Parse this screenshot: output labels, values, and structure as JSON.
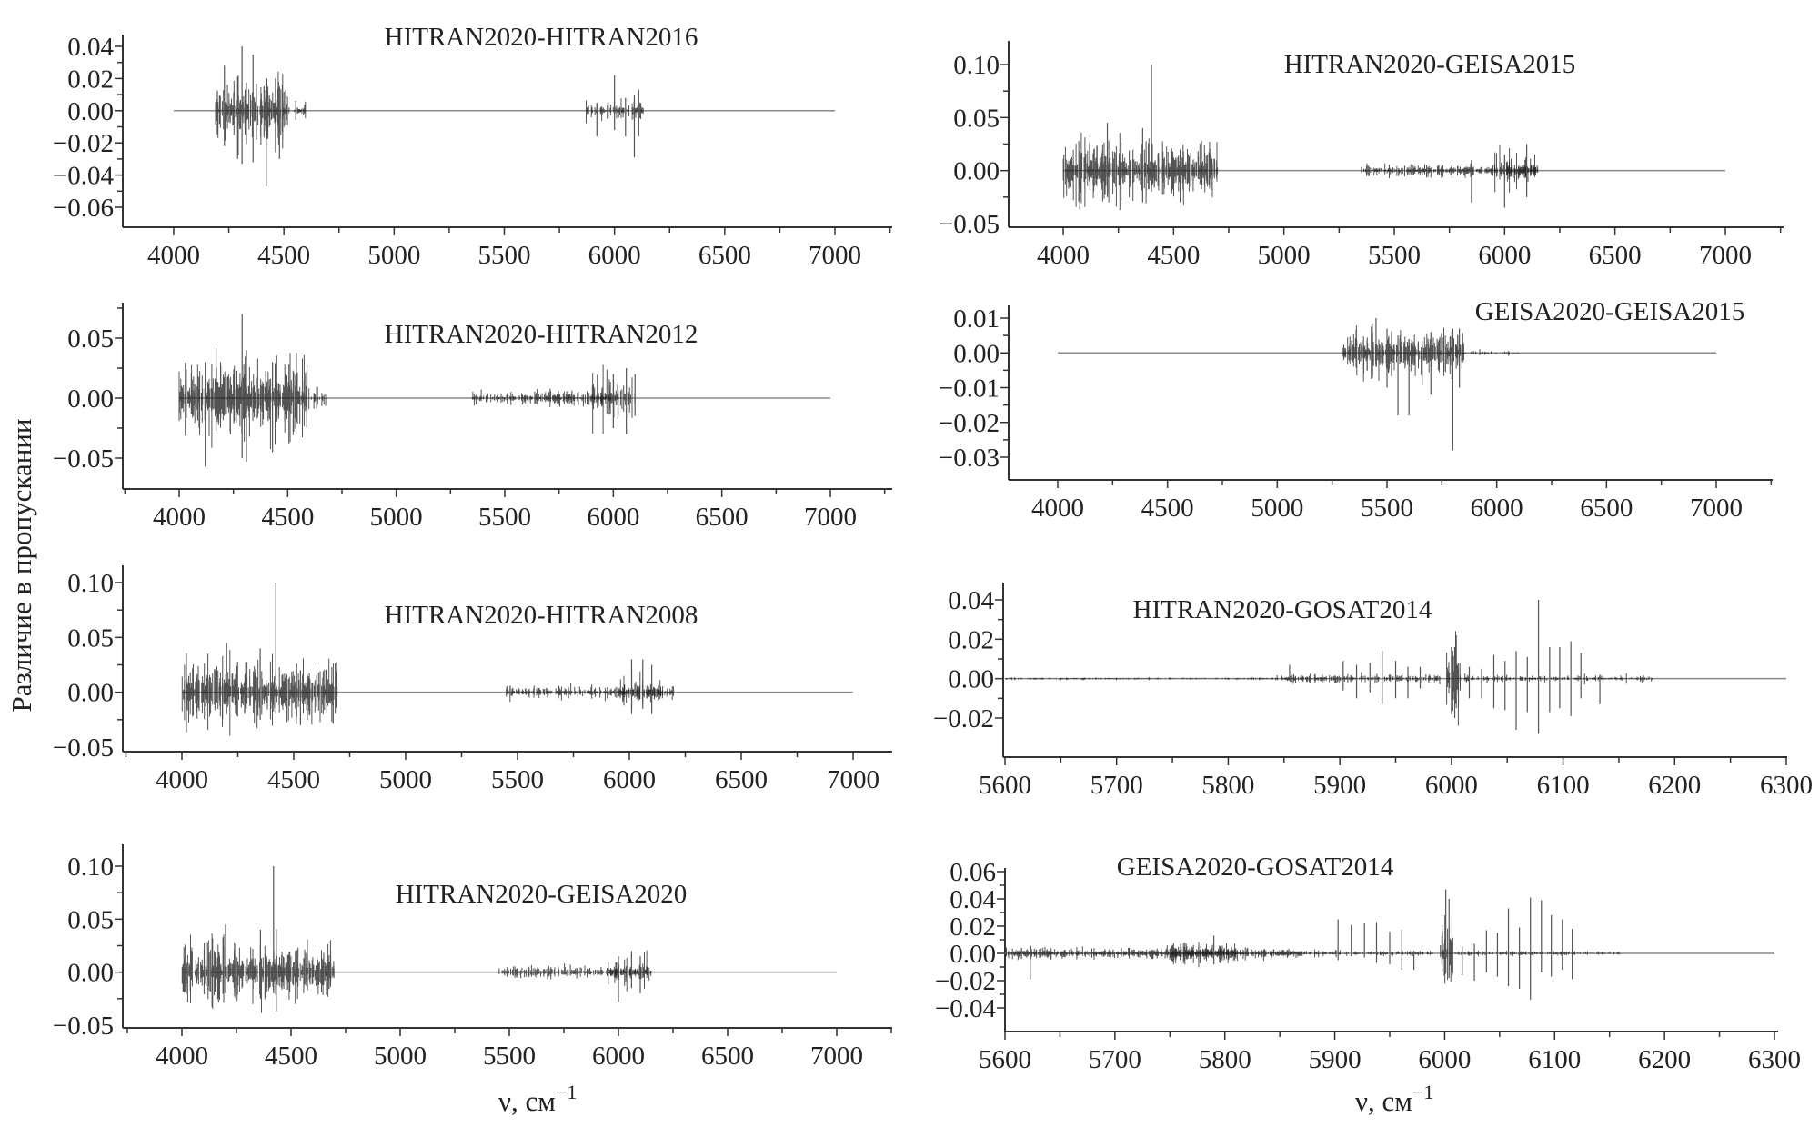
{
  "figure": {
    "ylabel": "Различие в пропускании",
    "xlabel_left": "ν, см",
    "xlabel_right": "ν, см",
    "xlabel_exponent": "−1"
  },
  "chart_data": [
    {
      "type": "line",
      "title": "HITRAN2020-HITRAN2016",
      "xlim": [
        4000,
        7000
      ],
      "xticks": [
        4000,
        4500,
        5000,
        5500,
        6000,
        6500,
        7000
      ],
      "yticks": [
        0.04,
        0.02,
        0.0,
        -0.02,
        -0.04,
        -0.06
      ],
      "ytick_labels": [
        "0.04",
        "0.02",
        "0.00",
        "−0.02",
        "−0.04",
        "−0.06"
      ],
      "baseline": [
        4000,
        7000
      ],
      "bands": [
        [
          4190,
          4520,
          0.012,
          1.0
        ],
        [
          4520,
          4600,
          0.003,
          0.5
        ],
        [
          5870,
          6130,
          0.004,
          0.6
        ]
      ],
      "spikes": [
        [
          4230,
          0.028,
          -0.022
        ],
        [
          4290,
          0.021,
          -0.03
        ],
        [
          4310,
          0.04,
          -0.033
        ],
        [
          4360,
          0.035,
          -0.032
        ],
        [
          4420,
          0.01,
          -0.047
        ],
        [
          4480,
          0.015,
          -0.03
        ],
        [
          5920,
          0.005,
          -0.016
        ],
        [
          6000,
          0.022,
          -0.012
        ],
        [
          6050,
          0.008,
          -0.016
        ],
        [
          6090,
          0.01,
          -0.029
        ],
        [
          6110,
          0.013,
          -0.016
        ]
      ]
    },
    {
      "type": "line",
      "title": "HITRAN2020-HITRAN2012",
      "xlim": [
        4000,
        7000
      ],
      "xticks": [
        4000,
        4500,
        5000,
        5500,
        6000,
        6500,
        7000
      ],
      "yticks": [
        0.05,
        0.0,
        -0.05
      ],
      "ytick_labels": [
        "0.05",
        "0.00",
        "−0.05"
      ],
      "baseline": [
        4000,
        7000
      ],
      "bands": [
        [
          4000,
          4600,
          0.02,
          1.0
        ],
        [
          4600,
          4680,
          0.006,
          0.4
        ],
        [
          5350,
          6000,
          0.004,
          0.7
        ],
        [
          5900,
          6100,
          0.012,
          0.5
        ]
      ],
      "spikes": [
        [
          4120,
          0.03,
          -0.057
        ],
        [
          4170,
          0.042,
          -0.03
        ],
        [
          4290,
          0.07,
          -0.05
        ],
        [
          4310,
          0.04,
          -0.053
        ],
        [
          4430,
          0.03,
          -0.045
        ],
        [
          4540,
          0.038,
          -0.02
        ],
        [
          6000,
          0.02,
          -0.025
        ],
        [
          6060,
          0.025,
          -0.03
        ],
        [
          6100,
          0.02,
          -0.015
        ]
      ]
    },
    {
      "type": "line",
      "title": "HITRAN2020-HITRAN2008",
      "xlim": [
        4000,
        7000
      ],
      "xticks": [
        4000,
        4500,
        5000,
        5500,
        6000,
        6500,
        7000
      ],
      "yticks": [
        0.1,
        0.05,
        0.0,
        -0.05
      ],
      "ytick_labels": [
        "0.10",
        "0.05",
        "0.00",
        "−0.05"
      ],
      "baseline": [
        4000,
        7000
      ],
      "bands": [
        [
          4000,
          4700,
          0.018,
          1.0
        ],
        [
          5450,
          6200,
          0.004,
          0.7
        ],
        [
          5950,
          6150,
          0.01,
          0.5
        ]
      ],
      "spikes": [
        [
          4200,
          0.045,
          -0.02
        ],
        [
          4350,
          0.04,
          -0.025
        ],
        [
          4420,
          0.1,
          -0.02
        ],
        [
          4530,
          0.02,
          -0.03
        ],
        [
          6010,
          0.03,
          -0.02
        ],
        [
          6060,
          0.03,
          -0.015
        ],
        [
          6100,
          0.025,
          -0.02
        ]
      ]
    },
    {
      "type": "line",
      "title": "HITRAN2020-GEISA2020",
      "xlim": [
        4000,
        7000
      ],
      "xticks": [
        4000,
        4500,
        5000,
        5500,
        6000,
        6500,
        7000
      ],
      "yticks": [
        0.1,
        0.05,
        0.0,
        -0.05
      ],
      "ytick_labels": [
        "0.10",
        "0.05",
        "0.00",
        "−0.05"
      ],
      "baseline": [
        4000,
        7000
      ],
      "bands": [
        [
          4000,
          4700,
          0.018,
          1.0
        ],
        [
          5450,
          6150,
          0.004,
          0.7
        ],
        [
          5950,
          6150,
          0.01,
          0.5
        ]
      ],
      "spikes": [
        [
          4200,
          0.045,
          -0.02
        ],
        [
          4360,
          0.04,
          -0.025
        ],
        [
          4420,
          0.1,
          -0.02
        ],
        [
          4520,
          0.02,
          -0.03
        ],
        [
          6000,
          0.015,
          -0.028
        ],
        [
          6060,
          0.02,
          -0.015
        ],
        [
          6100,
          0.015,
          -0.02
        ]
      ]
    },
    {
      "type": "line",
      "title": "HITRAN2020-GEISA2015",
      "xlim": [
        4000,
        7000
      ],
      "xticks": [
        4000,
        4500,
        5000,
        5500,
        6000,
        6500,
        7000
      ],
      "yticks": [
        0.1,
        0.05,
        0.0,
        -0.05
      ],
      "ytick_labels": [
        "0.10",
        "0.05",
        "0.00",
        "−0.05"
      ],
      "baseline": [
        4000,
        7000
      ],
      "bands": [
        [
          4000,
          4700,
          0.018,
          1.0
        ],
        [
          5350,
          6150,
          0.004,
          0.7
        ],
        [
          5950,
          6150,
          0.01,
          0.5
        ]
      ],
      "spikes": [
        [
          4200,
          0.045,
          -0.025
        ],
        [
          4360,
          0.04,
          -0.03
        ],
        [
          4400,
          0.1,
          -0.02
        ],
        [
          4530,
          0.02,
          -0.03
        ],
        [
          5850,
          0.01,
          -0.03
        ],
        [
          6000,
          0.015,
          -0.035
        ],
        [
          6100,
          0.025,
          -0.025
        ]
      ]
    },
    {
      "type": "line",
      "title": "GEISA2020-GEISA2015",
      "xlim": [
        4000,
        7000
      ],
      "xticks": [
        4000,
        4500,
        5000,
        5500,
        6000,
        6500,
        7000
      ],
      "yticks": [
        0.01,
        0.0,
        -0.01,
        -0.02,
        -0.03
      ],
      "ytick_labels": [
        "0.01",
        "0.00",
        "−0.01",
        "−0.02",
        "−0.03"
      ],
      "baseline": [
        4000,
        7000
      ],
      "bands": [
        [
          5300,
          5850,
          0.004,
          1.0
        ],
        [
          5850,
          6100,
          0.0005,
          0.3
        ]
      ],
      "spikes": [
        [
          5450,
          0.01,
          -0.004
        ],
        [
          5500,
          0.007,
          -0.01
        ],
        [
          5550,
          0.005,
          -0.018
        ],
        [
          5600,
          0.004,
          -0.018
        ],
        [
          5700,
          0.006,
          -0.012
        ],
        [
          5800,
          0.007,
          -0.028
        ],
        [
          5830,
          0.007,
          -0.01
        ]
      ]
    },
    {
      "type": "line",
      "title": "HITRAN2020-GOSAT2014",
      "xlim": [
        5600,
        6300
      ],
      "xticks": [
        5600,
        5700,
        5800,
        5900,
        6000,
        6100,
        6200,
        6300
      ],
      "yticks": [
        0.04,
        0.02,
        0.0,
        -0.02
      ],
      "ytick_labels": [
        "0.04",
        "0.02",
        "0.00",
        "−0.02"
      ],
      "baseline": [
        5600,
        6300
      ],
      "bands": [
        [
          5600,
          5840,
          0.0004,
          0.5
        ],
        [
          5840,
          5990,
          0.0015,
          0.6
        ],
        [
          5995,
          6008,
          0.012,
          1.0
        ],
        [
          6008,
          6180,
          0.0012,
          0.5
        ]
      ],
      "spikes": [
        [
          5855,
          0.007,
          -0.001
        ],
        [
          5903,
          0.009,
          -0.006
        ],
        [
          5915,
          0.007,
          -0.01
        ],
        [
          5927,
          0.008,
          -0.007
        ],
        [
          5938,
          0.014,
          -0.013
        ],
        [
          5950,
          0.009,
          -0.01
        ],
        [
          5961,
          0.006,
          -0.01
        ],
        [
          5972,
          0.006,
          -0.005
        ],
        [
          6000,
          0.016,
          -0.018
        ],
        [
          6003,
          0.016,
          -0.02
        ],
        [
          6016,
          0.006,
          -0.01
        ],
        [
          6027,
          0.005,
          -0.01
        ],
        [
          6038,
          0.012,
          -0.015
        ],
        [
          6048,
          0.009,
          -0.016
        ],
        [
          6058,
          0.014,
          -0.026
        ],
        [
          6068,
          0.011,
          -0.017
        ],
        [
          6078,
          0.04,
          -0.028
        ],
        [
          6088,
          0.016,
          -0.017
        ],
        [
          6097,
          0.016,
          -0.015
        ],
        [
          6107,
          0.019,
          -0.019
        ],
        [
          6116,
          0.013,
          -0.01
        ],
        [
          6133,
          0.002,
          -0.013
        ]
      ]
    },
    {
      "type": "line",
      "title": "GEISA2020-GOSAT2014",
      "xlim": [
        5600,
        6300
      ],
      "xticks": [
        5600,
        5700,
        5800,
        5900,
        6000,
        6100,
        6200,
        6300
      ],
      "yticks": [
        0.06,
        0.04,
        0.02,
        0.0,
        -0.02,
        -0.04
      ],
      "ytick_labels": [
        "0.06",
        "0.04",
        "0.02",
        "0.00",
        "−0.02",
        "−0.04"
      ],
      "baseline": [
        5600,
        6300
      ],
      "bands": [
        [
          5600,
          5870,
          0.0025,
          1.0
        ],
        [
          5750,
          5810,
          0.005,
          0.8
        ],
        [
          5870,
          5990,
          0.0015,
          0.5
        ],
        [
          5996,
          6008,
          0.015,
          1.0
        ],
        [
          6008,
          6160,
          0.0012,
          0.5
        ]
      ],
      "spikes": [
        [
          5615,
          0.004,
          -0.004
        ],
        [
          5623,
          0.002,
          -0.019
        ],
        [
          5790,
          0.013,
          -0.008
        ],
        [
          5903,
          0.025,
          -0.005
        ],
        [
          5915,
          0.021,
          -0.002
        ],
        [
          5927,
          0.022,
          -0.003
        ],
        [
          5938,
          0.023,
          -0.007
        ],
        [
          5950,
          0.016,
          -0.008
        ],
        [
          5961,
          0.017,
          -0.012
        ],
        [
          5972,
          0.002,
          -0.012
        ],
        [
          6001,
          0.047,
          -0.015
        ],
        [
          6004,
          0.04,
          -0.018
        ],
        [
          6016,
          0.005,
          -0.016
        ],
        [
          6027,
          0.007,
          -0.02
        ],
        [
          6038,
          0.017,
          -0.014
        ],
        [
          6048,
          0.015,
          -0.017
        ],
        [
          6058,
          0.033,
          -0.024
        ],
        [
          6068,
          0.019,
          -0.026
        ],
        [
          6078,
          0.041,
          -0.034
        ],
        [
          6088,
          0.039,
          -0.014
        ],
        [
          6097,
          0.028,
          -0.017
        ],
        [
          6107,
          0.025,
          -0.012
        ],
        [
          6116,
          0.018,
          -0.019
        ]
      ]
    }
  ]
}
